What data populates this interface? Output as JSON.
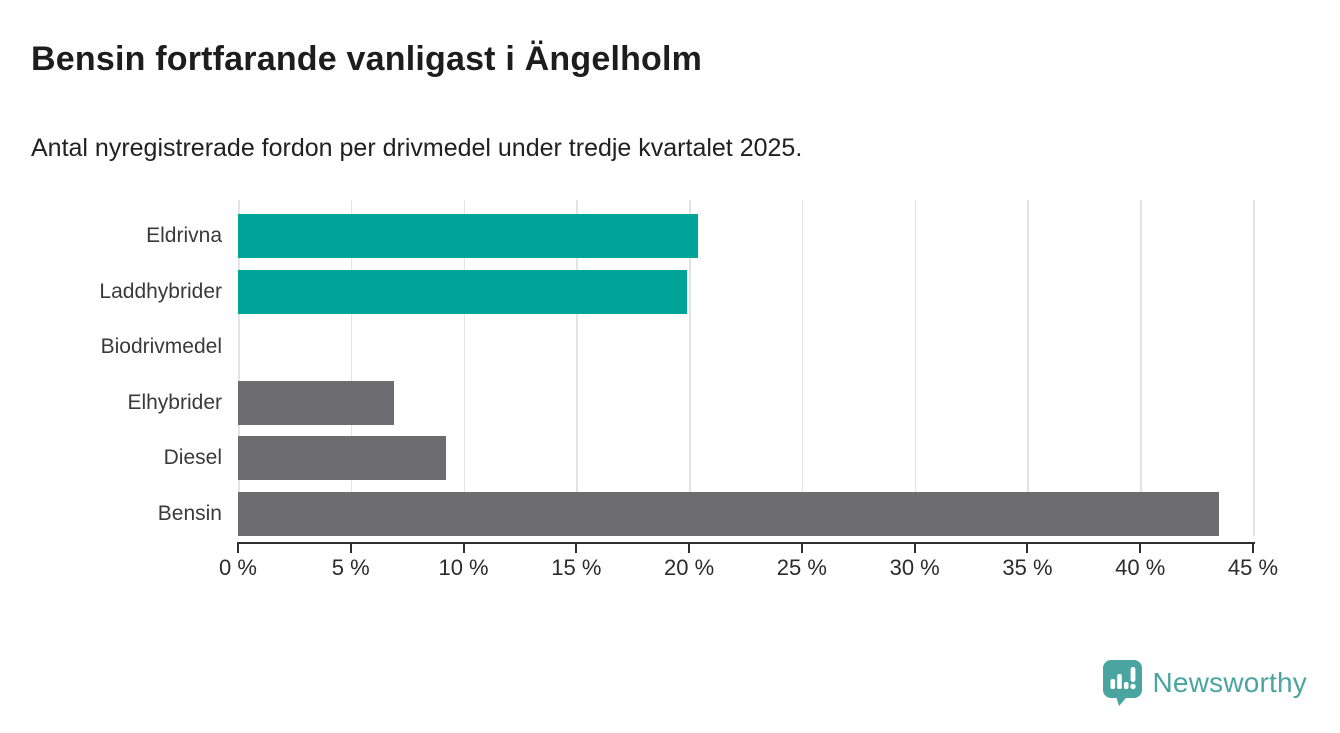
{
  "header": {
    "title": "Bensin fortfarande vanligast i Ängelholm",
    "subtitle": "Antal nyregistrerade fordon per drivmedel under tredje kvartalet 2025."
  },
  "chart_data": {
    "type": "bar",
    "orientation": "horizontal",
    "title": "Bensin fortfarande vanligast i Ängelholm",
    "subtitle": "Antal nyregistrerade fordon per drivmedel under tredje kvartalet 2025.",
    "categories": [
      "Eldrivna",
      "Laddhybrider",
      "Biodrivmedel",
      "Elhybrider",
      "Diesel",
      "Bensin"
    ],
    "values": [
      20.4,
      19.9,
      0,
      6.9,
      9.2,
      43.5
    ],
    "bar_colors": [
      "#00A398",
      "#00A398",
      "#6C6C71",
      "#6C6C71",
      "#6C6C71",
      "#6C6C71"
    ],
    "xlabel": "",
    "ylabel": "",
    "xlim": [
      0,
      45
    ],
    "x_ticks": [
      0,
      5,
      10,
      15,
      20,
      25,
      30,
      35,
      40,
      45
    ],
    "x_tick_suffix": " %",
    "grid": "vertical-gridlines",
    "legend": "none"
  },
  "footer": {
    "brand": "Newsworthy"
  },
  "colors": {
    "accent_teal": "#00A398",
    "bar_gray": "#6C6C71",
    "logo_teal": "#4AA5A1",
    "gridline": "#E3E3E3",
    "axis": "#2E2E2E",
    "title_text": "#1D1D1D",
    "tick_label": "#2B2B2B"
  }
}
